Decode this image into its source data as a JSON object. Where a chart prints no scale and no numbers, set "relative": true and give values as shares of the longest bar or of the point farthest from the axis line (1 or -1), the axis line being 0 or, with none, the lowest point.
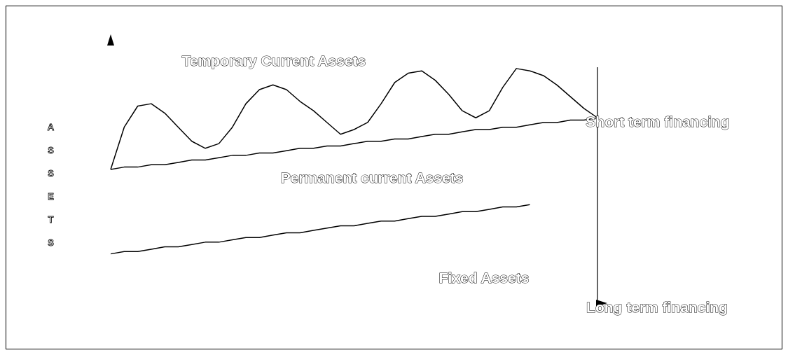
{
  "chart_data": {
    "type": "line",
    "relative": true,
    "marker": "none",
    "line_style": "solid",
    "categories": [
      null,
      null,
      null,
      null,
      null,
      null,
      null,
      null,
      null,
      null,
      null,
      null,
      null,
      null,
      null,
      null,
      null,
      null,
      null,
      null,
      null,
      null,
      null,
      null,
      null,
      null,
      null,
      null,
      null,
      null,
      null,
      null,
      null,
      null,
      null,
      null,
      null
    ],
    "series": [
      {
        "color": "#000000",
        "values": [
          0.57,
          0.75,
          0.84,
          0.85,
          0.81,
          0.75,
          0.69,
          0.66,
          0.68,
          0.75,
          0.85,
          0.91,
          0.93,
          0.91,
          0.86,
          0.82,
          0.77,
          0.72,
          0.74,
          0.77,
          0.85,
          0.94,
          0.98,
          0.99,
          0.95,
          0.89,
          0.82,
          0.79,
          0.82,
          0.92,
          1.0,
          0.99,
          0.97,
          0.93,
          0.88,
          0.83,
          0.79
        ]
      },
      {
        "color": "#000000",
        "values": [
          0.57,
          0.58,
          0.58,
          0.59,
          0.59,
          0.6,
          0.61,
          0.61,
          0.62,
          0.63,
          0.63,
          0.64,
          0.64,
          0.65,
          0.66,
          0.66,
          0.67,
          0.67,
          0.68,
          0.69,
          0.69,
          0.7,
          0.7,
          0.71,
          0.72,
          0.72,
          0.73,
          0.74,
          0.74,
          0.75,
          0.75,
          0.76,
          0.77,
          0.77,
          0.78,
          0.78,
          0.79
        ]
      },
      {
        "color": "#000000",
        "values": [
          0.21,
          0.22,
          0.22,
          0.23,
          0.24,
          0.24,
          0.25,
          0.26,
          0.26,
          0.27,
          0.28,
          0.28,
          0.29,
          0.3,
          0.3,
          0.31,
          0.32,
          0.33,
          0.33,
          0.34,
          0.35,
          0.35,
          0.36,
          0.37,
          0.37,
          0.38,
          0.39,
          0.39,
          0.4,
          0.41,
          0.41,
          0.42,
          null,
          null,
          null,
          null,
          null
        ]
      }
    ],
    "annotations": [
      "Temporary Current Assets",
      "Permanent current Assets",
      "Fixed Assets",
      "Short term financing",
      "Long term financing",
      "ASSETS"
    ]
  }
}
